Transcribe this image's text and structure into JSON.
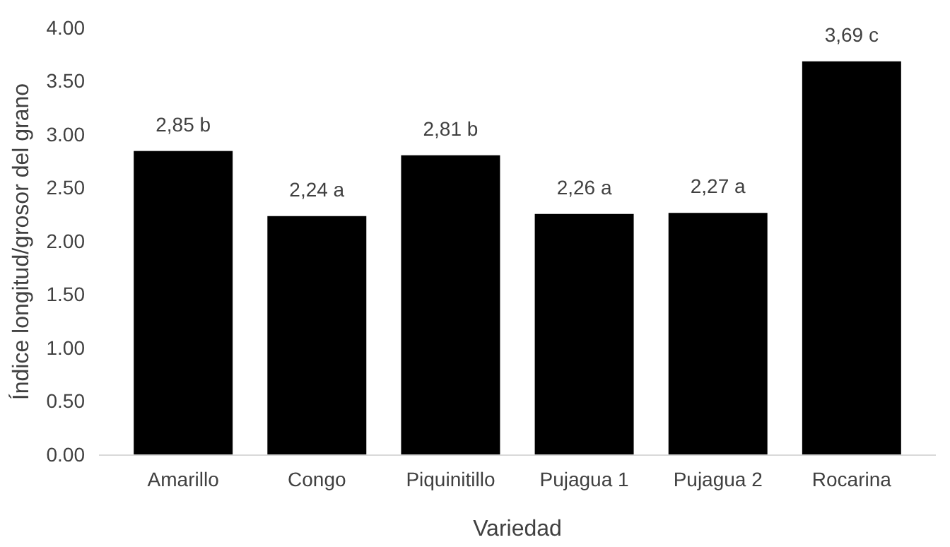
{
  "chart_data": {
    "type": "bar",
    "xlabel": "Variedad",
    "ylabel": "Índice longitud/grosor del grano",
    "categories": [
      "Amarillo",
      "Congo",
      "Piquinitillo",
      "Pujagua 1",
      "Pujagua 2",
      "Rocarina"
    ],
    "values": [
      2.85,
      2.24,
      2.81,
      2.26,
      2.27,
      3.69
    ],
    "value_labels": [
      "2,85 b",
      "2,24 a",
      "2,81 b",
      "2,26 a",
      "2,27 a",
      "3,69 c"
    ],
    "color": "#000000",
    "ylim": [
      0,
      4
    ],
    "yticks": [
      {
        "value": 0,
        "label": "0.00"
      },
      {
        "value": 0.5,
        "label": "0.50"
      },
      {
        "value": 1,
        "label": "1.00"
      },
      {
        "value": 1.5,
        "label": "1.50"
      },
      {
        "value": 2,
        "label": "2.00"
      },
      {
        "value": 2.5,
        "label": "2.50"
      },
      {
        "value": 3,
        "label": "3.00"
      },
      {
        "value": 3.5,
        "label": "3.50"
      },
      {
        "value": 4,
        "label": "4.00"
      }
    ]
  }
}
